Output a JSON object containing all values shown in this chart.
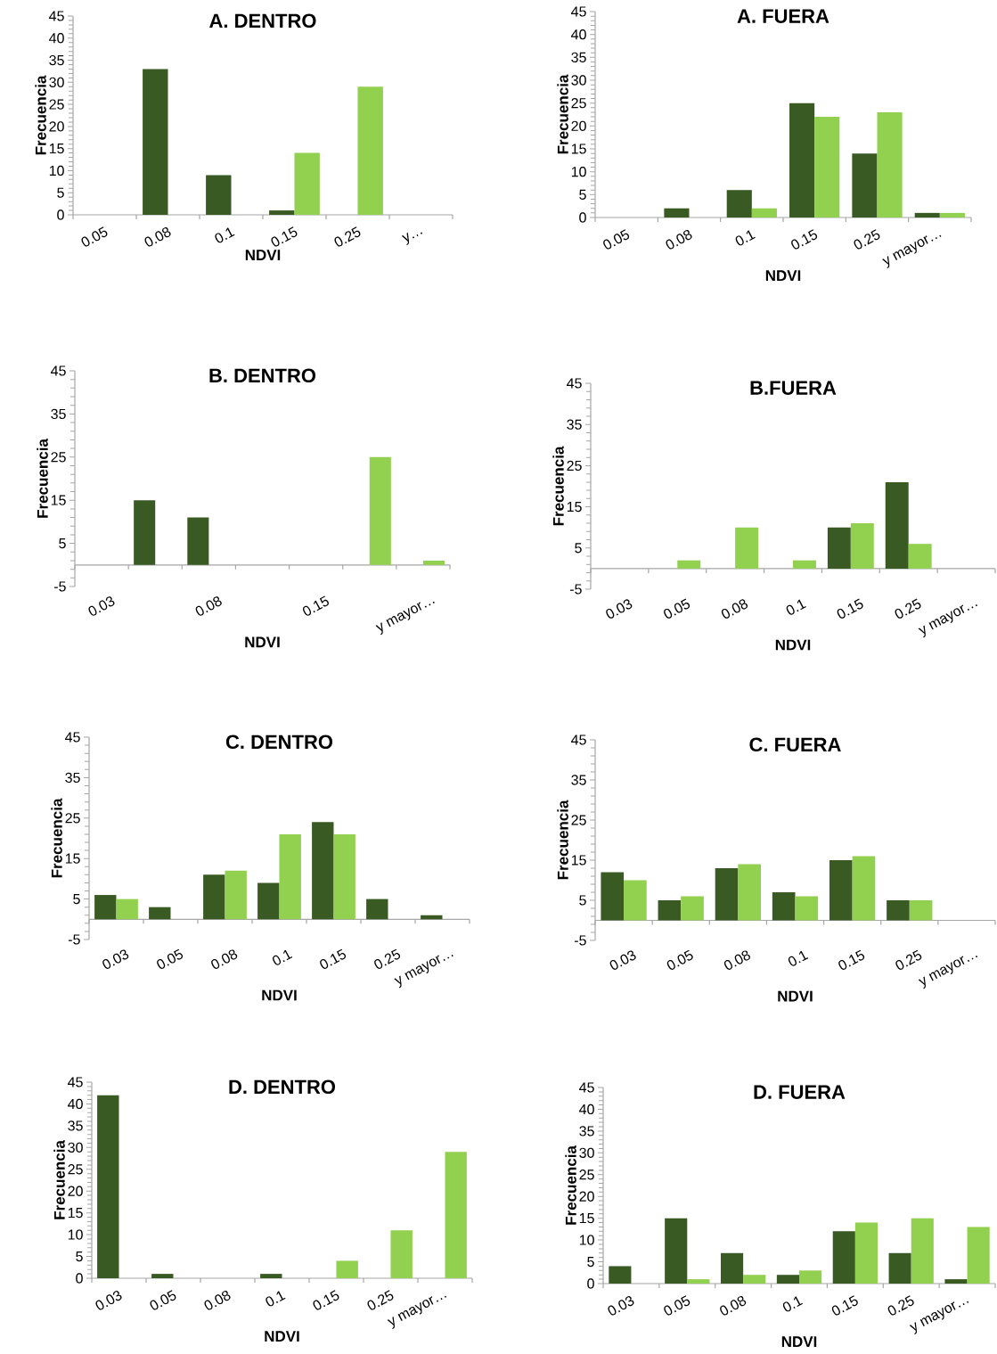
{
  "chart_data": [
    {
      "type": "bar",
      "title": "A. DENTRO",
      "xlabel": "NDVI",
      "ylabel": "Frecuencia",
      "categories": [
        "0.05",
        "0.08",
        "0.1",
        "0.15",
        "0.25",
        "y…"
      ],
      "series": [
        {
          "color": "#3a5a24",
          "values": [
            null,
            33,
            9,
            1,
            null,
            null
          ]
        },
        {
          "color": "#92d050",
          "values": [
            null,
            null,
            null,
            14,
            29,
            null
          ]
        }
      ],
      "ylim": [
        0,
        45
      ],
      "yticks": [
        0,
        5,
        10,
        15,
        20,
        25,
        30,
        35,
        40,
        45
      ]
    },
    {
      "type": "bar",
      "title": "A. FUERA",
      "xlabel": "NDVI",
      "ylabel": "Frecuencia",
      "categories": [
        "0.05",
        "0.08",
        "0.1",
        "0.15",
        "0.25",
        "y mayor…"
      ],
      "series": [
        {
          "color": "#3a5a24",
          "values": [
            null,
            2,
            6,
            25,
            14,
            1
          ]
        },
        {
          "color": "#92d050",
          "values": [
            null,
            null,
            2,
            22,
            23,
            1
          ]
        }
      ],
      "ylim": [
        0,
        45
      ],
      "yticks": [
        0,
        5,
        10,
        15,
        20,
        25,
        30,
        35,
        40,
        45
      ]
    },
    {
      "type": "bar",
      "title": "B. DENTRO",
      "xlabel": "NDVI",
      "ylabel": "Frecuencia",
      "categories": [
        "0.03",
        null,
        "0.08",
        null,
        "0.15",
        null,
        "y mayor…"
      ],
      "series": [
        {
          "color": "#3a5a24",
          "values": [
            null,
            15,
            11,
            null,
            null,
            null,
            null
          ]
        },
        {
          "color": "#92d050",
          "values": [
            null,
            null,
            null,
            null,
            null,
            25,
            1
          ]
        }
      ],
      "ylim": [
        -5,
        45
      ],
      "yticks": [
        -5,
        5,
        15,
        25,
        35,
        45
      ]
    },
    {
      "type": "bar",
      "title": "B.FUERA",
      "xlabel": "NDVI",
      "ylabel": "Frecuencia",
      "categories": [
        "0.03",
        "0.05",
        "0.08",
        "0.1",
        "0.15",
        "0.25",
        "y mayor…"
      ],
      "series": [
        {
          "color": "#3a5a24",
          "values": [
            null,
            null,
            null,
            null,
            10,
            21,
            null
          ]
        },
        {
          "color": "#92d050",
          "values": [
            null,
            2,
            10,
            2,
            11,
            6,
            null
          ]
        }
      ],
      "ylim": [
        -5,
        45
      ],
      "yticks": [
        -5,
        5,
        15,
        25,
        35,
        45
      ]
    },
    {
      "type": "bar",
      "title": "C. DENTRO",
      "xlabel": "NDVI",
      "ylabel": "Frecuencia",
      "categories": [
        "0.03",
        "0.05",
        "0.08",
        "0.1",
        "0.15",
        "0.25",
        "y mayor…"
      ],
      "series": [
        {
          "color": "#3a5a24",
          "values": [
            6,
            3,
            11,
            9,
            24,
            5,
            1
          ]
        },
        {
          "color": "#92d050",
          "values": [
            5,
            null,
            12,
            21,
            21,
            null,
            null
          ]
        }
      ],
      "ylim": [
        -5,
        45
      ],
      "yticks": [
        -5,
        5,
        15,
        25,
        35,
        45
      ]
    },
    {
      "type": "bar",
      "title": "C. FUERA",
      "xlabel": "NDVI",
      "ylabel": "Frecuencia",
      "categories": [
        "0.03",
        "0.05",
        "0.08",
        "0.1",
        "0.15",
        "0.25",
        "y mayor…"
      ],
      "series": [
        {
          "color": "#3a5a24",
          "values": [
            12,
            5,
            13,
            7,
            15,
            5,
            null
          ]
        },
        {
          "color": "#92d050",
          "values": [
            10,
            6,
            14,
            6,
            16,
            5,
            null
          ]
        }
      ],
      "ylim": [
        -5,
        45
      ],
      "yticks": [
        -5,
        5,
        15,
        25,
        35,
        45
      ]
    },
    {
      "type": "bar",
      "title": "D. DENTRO",
      "xlabel": "NDVI",
      "ylabel": "Frecuencia",
      "categories": [
        "0.03",
        "0.05",
        "0.08",
        "0.1",
        "0.15",
        "0.25",
        "y mayor…"
      ],
      "series": [
        {
          "color": "#3a5a24",
          "values": [
            42,
            1,
            null,
            1,
            null,
            null,
            null
          ]
        },
        {
          "color": "#92d050",
          "values": [
            null,
            null,
            null,
            null,
            4,
            11,
            29
          ]
        }
      ],
      "ylim": [
        0,
        45
      ],
      "yticks": [
        0,
        5,
        10,
        15,
        20,
        25,
        30,
        35,
        40,
        45
      ]
    },
    {
      "type": "bar",
      "title": "D. FUERA",
      "xlabel": "NDVI",
      "ylabel": "Frecuencia",
      "categories": [
        "0.03",
        "0.05",
        "0.08",
        "0.1",
        "0.15",
        "0.25",
        "y mayor…"
      ],
      "series": [
        {
          "color": "#3a5a24",
          "values": [
            4,
            15,
            7,
            2,
            12,
            7,
            1
          ]
        },
        {
          "color": "#92d050",
          "values": [
            null,
            1,
            2,
            3,
            14,
            15,
            13
          ]
        }
      ],
      "ylim": [
        0,
        45
      ],
      "yticks": [
        0,
        5,
        10,
        15,
        20,
        25,
        30,
        35,
        40,
        45
      ]
    }
  ]
}
